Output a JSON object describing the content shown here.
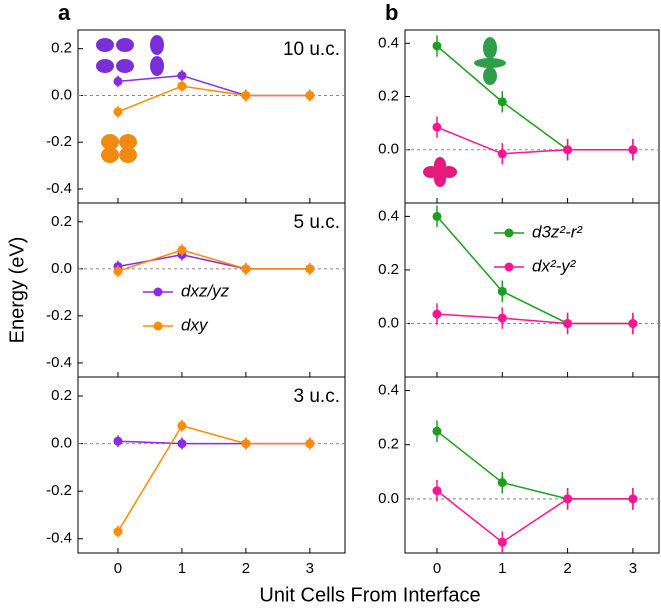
{
  "figure": {
    "y_label": "Energy (eV)",
    "x_label": "Unit Cells From Interface"
  },
  "chart_data": [
    {
      "type": "line",
      "panel_label": "a",
      "annotation": "10 u.c.",
      "xlim": [
        -0.625,
        3.55
      ],
      "ylim": [
        -0.46,
        0.28
      ],
      "xticks": [
        0,
        1,
        2,
        3
      ],
      "yticks": [
        0.2,
        {
          "value": 0,
          "label": "0.0"
        },
        -0.2,
        -0.4
      ],
      "x": [
        0,
        1,
        2,
        3
      ],
      "series": [
        {
          "name": "dxz/yz",
          "color": "#8a2be2",
          "values": [
            0.06,
            0.085,
            0,
            0
          ],
          "errors": [
            0.025,
            0.025,
            0.025,
            0.025
          ]
        },
        {
          "name": "dxy",
          "color": "#ff8c00",
          "values": [
            -0.07,
            0.04,
            0,
            0
          ],
          "errors": [
            0.025,
            0.025,
            0.025,
            0.025
          ]
        }
      ]
    },
    {
      "type": "line",
      "panel_label": "b",
      "annotation": null,
      "xlim": [
        -0.49,
        3.4
      ],
      "ylim": [
        -0.2,
        0.45
      ],
      "xticks": [
        0,
        1,
        2,
        3
      ],
      "yticks": [
        0.4,
        0.2,
        {
          "value": 0,
          "label": "0.0"
        }
      ],
      "x": [
        0,
        1,
        2,
        3
      ],
      "series": [
        {
          "name": "d3z²-r²",
          "color": "#1e9e1e",
          "values": [
            0.39,
            0.18,
            0,
            0
          ],
          "errors": [
            0.04,
            0.04,
            0.04,
            0.04
          ]
        },
        {
          "name": "dx²-y²",
          "color": "#ff1493",
          "values": [
            0.085,
            -0.015,
            0,
            0
          ],
          "errors": [
            0.04,
            0.04,
            0.04,
            0.04
          ]
        }
      ]
    },
    {
      "type": "line",
      "annotation": "5 u.c.",
      "legend": "lower-left",
      "xlim": [
        -0.625,
        3.55
      ],
      "ylim": [
        -0.46,
        0.28
      ],
      "xticks": [
        0,
        1,
        2,
        3
      ],
      "yticks": [
        0.2,
        {
          "value": 0,
          "label": "0.0"
        },
        -0.2,
        -0.4
      ],
      "x": [
        0,
        1,
        2,
        3
      ],
      "series": [
        {
          "name": "dxz/yz",
          "color": "#8a2be2",
          "values": [
            0.01,
            0.06,
            0,
            0
          ],
          "errors": [
            0.025,
            0.025,
            0.025,
            0.025
          ]
        },
        {
          "name": "dxy",
          "color": "#ff8c00",
          "values": [
            -0.01,
            0.08,
            0,
            0
          ],
          "errors": [
            0.025,
            0.025,
            0.025,
            0.025
          ]
        }
      ]
    },
    {
      "type": "line",
      "legend": "upper-right",
      "xlim": [
        -0.49,
        3.4
      ],
      "ylim": [
        -0.2,
        0.45
      ],
      "xticks": [
        0,
        1,
        2,
        3
      ],
      "yticks": [
        0.4,
        0.2,
        {
          "value": 0,
          "label": "0.0"
        }
      ],
      "x": [
        0,
        1,
        2,
        3
      ],
      "series": [
        {
          "name": "d3z²-r²",
          "color": "#1e9e1e",
          "values": [
            0.4,
            0.12,
            0,
            0
          ],
          "errors": [
            0.04,
            0.04,
            0.04,
            0.04
          ]
        },
        {
          "name": "dx²-y²",
          "color": "#ff1493",
          "values": [
            0.035,
            0.02,
            0,
            0
          ],
          "errors": [
            0.04,
            0.04,
            0.04,
            0.04
          ]
        }
      ]
    },
    {
      "type": "line",
      "annotation": "3 u.c.",
      "xlim": [
        -0.625,
        3.55
      ],
      "ylim": [
        -0.46,
        0.28
      ],
      "xticks": [
        0,
        1,
        2,
        3
      ],
      "yticks": [
        0.2,
        {
          "value": 0,
          "label": "0.0"
        },
        -0.2,
        -0.4
      ],
      "x": [
        0,
        1,
        2,
        3
      ],
      "series": [
        {
          "name": "dxz/yz",
          "color": "#8a2be2",
          "values": [
            0.01,
            0,
            0,
            0
          ],
          "errors": [
            0.025,
            0.025,
            0.025,
            0.025
          ]
        },
        {
          "name": "dxy",
          "color": "#ff8c00",
          "values": [
            -0.37,
            0.075,
            0,
            0
          ],
          "errors": [
            0.025,
            0.025,
            0.025,
            0.025
          ]
        }
      ]
    },
    {
      "type": "line",
      "xlim": [
        -0.49,
        3.4
      ],
      "ylim": [
        -0.2,
        0.45
      ],
      "xticks": [
        0,
        1,
        2,
        3
      ],
      "yticks": [
        0.4,
        0.2,
        {
          "value": 0,
          "label": "0.0"
        }
      ],
      "x": [
        0,
        1,
        2,
        3
      ],
      "series": [
        {
          "name": "d3z²-r²",
          "color": "#1e9e1e",
          "values": [
            0.25,
            0.06,
            0,
            0
          ],
          "errors": [
            0.04,
            0.04,
            0.04,
            0.04
          ]
        },
        {
          "name": "dx²-y²",
          "color": "#ff1493",
          "values": [
            0.03,
            -0.16,
            0,
            0
          ],
          "errors": [
            0.04,
            0.04,
            0.04,
            0.04
          ]
        }
      ]
    }
  ]
}
